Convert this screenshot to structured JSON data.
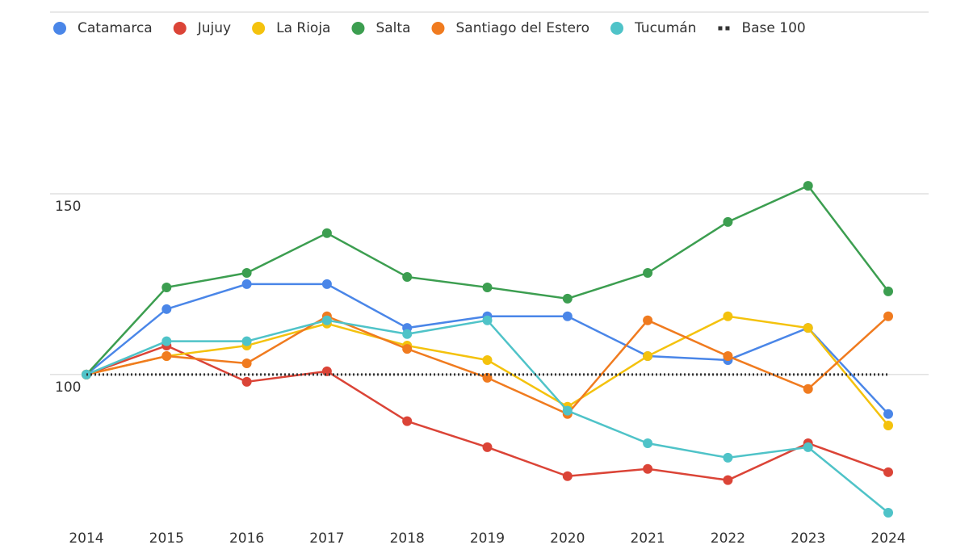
{
  "chart_data": {
    "type": "line",
    "categories": [
      "2014",
      "2015",
      "2016",
      "2017",
      "2018",
      "2019",
      "2020",
      "2021",
      "2022",
      "2023",
      "2024"
    ],
    "series": [
      {
        "name": "Catamarca",
        "color": "#4a86e8",
        "values": [
          100,
          118.1,
          125,
          125,
          112.9,
          116.1,
          116.1,
          105.1,
          104,
          112.9,
          89.1
        ]
      },
      {
        "name": "Jujuy",
        "color": "#db4437",
        "values": [
          100,
          108,
          98,
          100.9,
          87.1,
          79.9,
          71.9,
          73.9,
          70.8,
          81,
          73
        ]
      },
      {
        "name": "La Rioja",
        "color": "#f4c20d",
        "values": [
          100,
          105.1,
          108,
          114.1,
          108,
          104,
          91.1,
          105.1,
          116.1,
          112.9,
          85.9
        ]
      },
      {
        "name": "Salta",
        "color": "#3c9e50",
        "values": [
          100,
          124.1,
          128.1,
          139.1,
          127,
          124.1,
          121,
          128.1,
          142.2,
          152.2,
          123
        ]
      },
      {
        "name": "Santiago del Estero",
        "color": "#f07b1f",
        "values": [
          100,
          105.1,
          103.1,
          116.1,
          107.1,
          99.1,
          89.1,
          115,
          105.1,
          96,
          116.1
        ]
      },
      {
        "name": "Tucumán",
        "color": "#4fc3c8",
        "values": [
          100,
          109.2,
          109.2,
          115,
          111.2,
          115,
          90,
          81,
          77,
          79.9,
          61.8
        ]
      },
      {
        "name": "Base 100",
        "color": "#333333",
        "style": "dotted",
        "values": [
          100,
          100,
          100,
          100,
          100,
          100,
          100,
          100,
          100,
          100,
          100
        ]
      }
    ],
    "ylim": [
      58,
      200
    ],
    "yticks": [
      100,
      150
    ],
    "grid": true,
    "legend": "top"
  }
}
